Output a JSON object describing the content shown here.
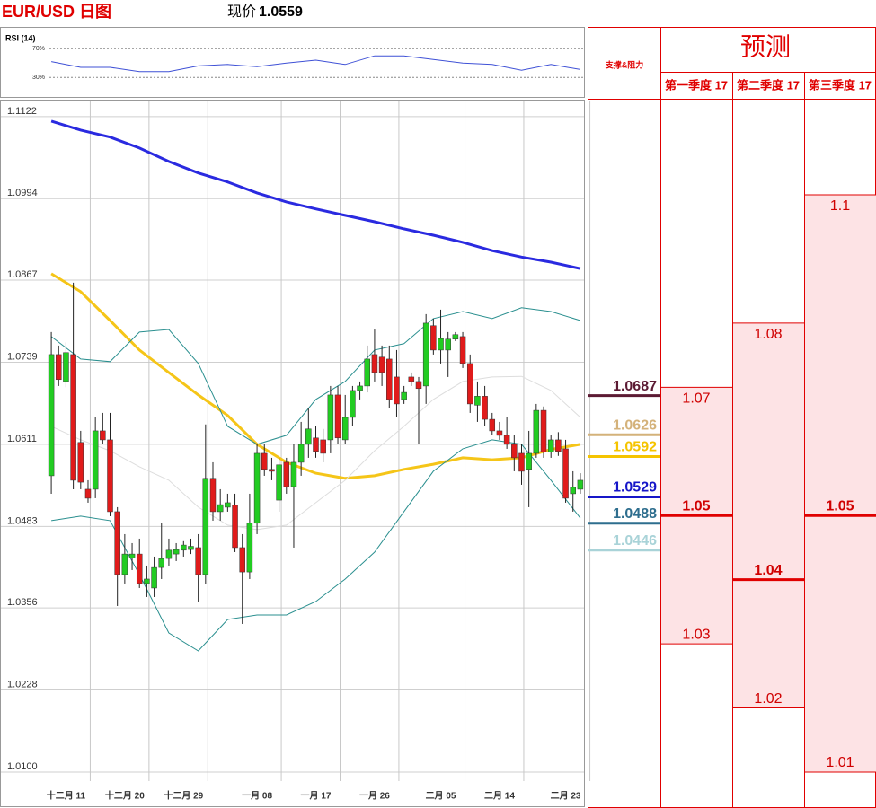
{
  "chart_data": [
    {
      "type": "line",
      "title": "RSI (14)",
      "ylim": [
        4,
        94
      ],
      "yticks": [
        {
          "value": 30,
          "label": "30%"
        },
        {
          "value": 70,
          "label": "70%"
        }
      ],
      "color": "#3f51d6",
      "x": [
        0,
        4,
        8,
        12,
        16,
        20,
        24,
        28,
        32,
        36,
        40,
        44,
        48,
        52,
        56,
        60,
        64,
        68,
        72
      ],
      "values": [
        52,
        44,
        44,
        38,
        38,
        46,
        48,
        45,
        50,
        54,
        48,
        60,
        60,
        55,
        50,
        48,
        40,
        48,
        41
      ]
    },
    {
      "type": "candlestick",
      "title": "EUR/USD 日图",
      "price_label": "现价",
      "price": 1.0559,
      "categories": [
        null,
        null,
        "十二月 11",
        null,
        null,
        null,
        null,
        null,
        null,
        null,
        "十二月 20",
        null,
        null,
        null,
        null,
        null,
        null,
        null,
        "十二月 29",
        null,
        null,
        null,
        null,
        null,
        null,
        null,
        null,
        null,
        "一月 08",
        null,
        null,
        null,
        null,
        null,
        null,
        null,
        "一月 17",
        null,
        null,
        null,
        null,
        null,
        null,
        null,
        "一月 26",
        null,
        null,
        null,
        null,
        null,
        null,
        null,
        null,
        "二月 05",
        null,
        null,
        null,
        null,
        null,
        null,
        null,
        "二月 14",
        null,
        null,
        null,
        null,
        null,
        null,
        null,
        null,
        "二月 23",
        null,
        null
      ],
      "open": [
        1.0562,
        1.0751,
        1.0709,
        1.0751,
        1.0614,
        1.0541,
        1.0541,
        1.0632,
        1.0618,
        1.0506,
        1.0408,
        1.0434,
        1.044,
        1.0394,
        1.0387,
        1.0419,
        1.0433,
        1.044,
        1.0446,
        1.0447,
        1.045,
        1.0408,
        1.0558,
        1.0506,
        1.0513,
        1.0516,
        1.045,
        1.0412,
        1.0488,
        1.0597,
        1.0572,
        1.0524,
        1.0583,
        1.0545,
        1.0583,
        1.0611,
        1.0621,
        1.0618,
        1.0618,
        1.0688,
        1.0618,
        1.0653,
        1.0695,
        1.0702,
        1.0751,
        1.0747,
        1.0744,
        1.0716,
        1.0681,
        1.0716,
        1.0709,
        1.0702,
        1.0796,
        1.0758,
        1.0758,
        1.0775,
        1.0779,
        1.0737,
        1.0672,
        1.0686,
        1.065,
        1.0632,
        1.0625,
        1.0611,
        1.0597,
        1.0572,
        1.0597,
        1.0664,
        1.0599,
        1.0618,
        1.0604,
        1.0534,
        1.0541
      ],
      "high": [
        1.0786,
        1.0765,
        1.077,
        1.0863,
        1.0632,
        1.0555,
        1.0653,
        1.066,
        1.066,
        1.0513,
        1.0471,
        1.0457,
        1.0464,
        1.0422,
        1.0436,
        1.0488,
        1.0464,
        1.0457,
        1.046,
        1.0464,
        1.0471,
        1.0642,
        1.0583,
        1.0541,
        1.0534,
        1.0534,
        1.0471,
        1.0534,
        1.0611,
        1.0611,
        1.059,
        1.059,
        1.059,
        1.0611,
        1.0646,
        1.0667,
        1.0639,
        1.0635,
        1.0702,
        1.0702,
        1.0688,
        1.0702,
        1.0709,
        1.0765,
        1.079,
        1.0765,
        1.0765,
        1.0758,
        1.0702,
        1.0723,
        1.0716,
        1.0814,
        1.0807,
        1.0821,
        1.0786,
        1.0786,
        1.0786,
        1.0751,
        1.0709,
        1.0702,
        1.066,
        1.0646,
        1.0653,
        1.0625,
        1.0611,
        1.0632,
        1.0674,
        1.067,
        1.0625,
        1.063,
        1.0618,
        1.0569,
        1.0566
      ],
      "low": [
        1.0534,
        1.0702,
        1.07,
        1.0541,
        1.0541,
        1.052,
        1.0527,
        1.0611,
        1.0499,
        1.0359,
        1.0394,
        1.0415,
        1.0387,
        1.0373,
        1.0373,
        1.0401,
        1.0422,
        1.0429,
        1.0436,
        1.044,
        1.0366,
        1.0394,
        1.0492,
        1.0492,
        1.0506,
        1.0443,
        1.0331,
        1.0401,
        1.0471,
        1.0562,
        1.0555,
        1.0506,
        1.0534,
        1.045,
        1.0562,
        1.059,
        1.059,
        1.0583,
        1.0597,
        1.0611,
        1.0611,
        1.0639,
        1.0681,
        1.0692,
        1.0709,
        1.0702,
        1.0667,
        1.0653,
        1.0674,
        1.0702,
        1.0611,
        1.0674,
        1.0751,
        1.0737,
        1.0716,
        1.0772,
        1.073,
        1.066,
        1.0646,
        1.0639,
        1.0625,
        1.0618,
        1.0604,
        1.0569,
        1.0548,
        1.0513,
        1.059,
        1.059,
        1.059,
        1.0593,
        1.052,
        1.0506,
        1.0534
      ],
      "close": [
        1.0751,
        1.0712,
        1.0754,
        1.0555,
        1.0552,
        1.0527,
        1.0632,
        1.0618,
        1.0506,
        1.0408,
        1.044,
        1.044,
        1.0394,
        1.0401,
        1.0419,
        1.0433,
        1.0446,
        1.0447,
        1.0454,
        1.0452,
        1.0408,
        1.0558,
        1.0506,
        1.0517,
        1.052,
        1.045,
        1.0412,
        1.0488,
        1.0597,
        1.0572,
        1.0569,
        1.0579,
        1.0545,
        1.0583,
        1.0611,
        1.0635,
        1.06,
        1.0597,
        1.0688,
        1.0621,
        1.0653,
        1.0695,
        1.0702,
        1.0744,
        1.0723,
        1.0723,
        1.0681,
        1.0674,
        1.0692,
        1.0709,
        1.0698,
        1.08,
        1.0758,
        1.0776,
        1.0775,
        1.0782,
        1.0737,
        1.0674,
        1.0686,
        1.065,
        1.0632,
        1.0625,
        1.0611,
        1.059,
        1.0569,
        1.0597,
        1.0664,
        1.0599,
        1.0618,
        1.06,
        1.0527,
        1.0544,
        1.0555
      ],
      "up_color": "#22cc22",
      "down_color": "#e01b1b",
      "ylim": [
        1.0086,
        1.1147
      ],
      "yticks": [
        1.1122,
        1.0994,
        1.0867,
        1.0739,
        1.0611,
        1.0483,
        1.0356,
        1.0228,
        {
          "value": 1.01,
          "label": "1.0100"
        }
      ],
      "grid": true,
      "lines": [
        {
          "color": "#2a2ae0",
          "style": "thick",
          "x": [
            0,
            4,
            8,
            12,
            16,
            20,
            24,
            28,
            32,
            36,
            40,
            44,
            48,
            52,
            56,
            60,
            64,
            68,
            72
          ],
          "values": [
            1.1115,
            1.1101,
            1.109,
            1.1073,
            1.1052,
            1.1034,
            1.102,
            1.1003,
            1.0989,
            1.0978,
            1.0968,
            1.0958,
            1.0947,
            1.0937,
            1.0926,
            1.0913,
            1.0903,
            1.0895,
            1.0885
          ]
        },
        {
          "color": "#f5c518",
          "style": "thick",
          "x": [
            0,
            4,
            8,
            12,
            16,
            20,
            24,
            28,
            32,
            36,
            40,
            44,
            48,
            52,
            56,
            60,
            64,
            68,
            72
          ],
          "values": [
            1.0877,
            1.0849,
            1.0804,
            1.0758,
            1.0723,
            1.0688,
            1.0656,
            1.0611,
            1.0583,
            1.0566,
            1.0558,
            1.0562,
            1.0572,
            1.058,
            1.059,
            1.0587,
            1.059,
            1.0603,
            1.0611
          ]
        },
        {
          "color": "#2a8f8f",
          "style": "thin",
          "x": [
            0,
            4,
            8,
            12,
            16,
            20,
            24,
            28,
            32,
            36,
            40,
            44,
            48,
            52,
            56,
            60,
            64,
            68,
            72
          ],
          "values": [
            1.0779,
            1.0744,
            1.074,
            1.0786,
            1.079,
            1.0737,
            1.0639,
            1.0611,
            1.0625,
            1.0681,
            1.0709,
            1.0758,
            1.0768,
            1.0807,
            1.0818,
            1.0807,
            1.0824,
            1.0818,
            1.0804
          ]
        },
        {
          "color": "#2a8f8f",
          "style": "thin",
          "x": [
            0,
            4,
            8,
            12,
            16,
            20,
            24,
            28,
            32,
            36,
            40,
            44,
            48,
            52,
            56,
            60,
            64,
            68,
            72
          ],
          "values": [
            1.0492,
            1.0499,
            1.0492,
            1.0408,
            1.0317,
            1.0289,
            1.0338,
            1.0345,
            1.0345,
            1.0366,
            1.0401,
            1.0443,
            1.0506,
            1.0569,
            1.0604,
            1.0618,
            1.0611,
            1.0555,
            1.0496
          ]
        },
        {
          "color": "#dddddd",
          "style": "thin",
          "x": [
            0,
            4,
            8,
            12,
            16,
            20,
            24,
            28,
            32,
            36,
            40,
            44,
            48,
            52,
            56,
            60,
            64,
            68,
            72
          ],
          "values": [
            1.0639,
            1.0618,
            1.0601,
            1.0576,
            1.0555,
            1.0513,
            1.0485,
            1.0478,
            1.0485,
            1.052,
            1.0555,
            1.0601,
            1.0639,
            1.0681,
            1.0709,
            1.0716,
            1.0717,
            1.0695,
            1.0653
          ]
        }
      ],
      "levels_title": "支撑&阻力",
      "levels": [
        {
          "value": 1.0687,
          "color": "#5c1a33"
        },
        {
          "value": 1.0626,
          "color": "#d4b27a"
        },
        {
          "value": 1.0592,
          "color": "#f5c400"
        },
        {
          "value": 1.0529,
          "color": "#1616c8"
        },
        {
          "value": 1.0488,
          "color": "#2e6e8e"
        },
        {
          "value": 1.0446,
          "color": "#a9d3d8"
        }
      ],
      "forecast_title": "预测",
      "forecast": [
        {
          "name": "第一季度 17",
          "high": 1.07,
          "mid": 1.05,
          "low": 1.03
        },
        {
          "name": "第二季度 17",
          "high": 1.08,
          "mid": 1.04,
          "low": 1.02
        },
        {
          "name": "第三季度 17",
          "high": 1.1,
          "mid": 1.05,
          "low": 1.01
        }
      ]
    }
  ]
}
